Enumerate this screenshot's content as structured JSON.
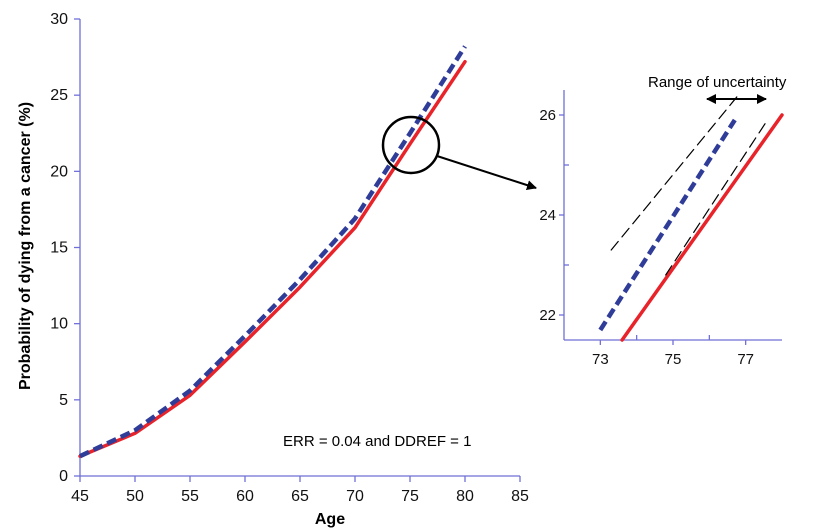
{
  "chart_data": [
    {
      "type": "line",
      "title": "",
      "xlabel": "Age",
      "ylabel": "Probability of dying from a cancer (%)",
      "xlim": [
        45,
        85
      ],
      "ylim": [
        0,
        30
      ],
      "x_ticks": [
        45,
        50,
        55,
        60,
        65,
        70,
        75,
        80,
        85
      ],
      "y_ticks": [
        0,
        5,
        10,
        15,
        20,
        25,
        30
      ],
      "grid": false,
      "annotation": "ERR = 0.04 and DDREF = 1",
      "colors": {
        "baseline": "#e8232a",
        "exposed": "#2f3d99",
        "axis": "#6f6fd8"
      },
      "series": [
        {
          "style": "solid",
          "color": "#e8232a",
          "x": [
            45,
            50,
            55,
            60,
            65,
            70,
            75,
            80
          ],
          "y": [
            1.3,
            2.8,
            5.3,
            8.8,
            12.4,
            16.3,
            21.8,
            27.2
          ]
        },
        {
          "style": "dashed",
          "color": "#2f3d99",
          "x": [
            45,
            50,
            55,
            60,
            65,
            70,
            75,
            80
          ],
          "y": [
            1.3,
            3.0,
            5.6,
            9.2,
            12.9,
            16.9,
            22.5,
            28.2
          ]
        }
      ]
    },
    {
      "type": "line",
      "title": "",
      "xlim": [
        72,
        78
      ],
      "ylim": [
        21.5,
        26.5
      ],
      "x_ticks": [
        73,
        75,
        77
      ],
      "y_ticks": [
        22,
        24,
        26
      ],
      "annotation": "Range of uncertainty",
      "series": [
        {
          "style": "solid",
          "color": "#e8232a",
          "x": [
            73.6,
            78
          ],
          "y": [
            21.5,
            26.0
          ]
        },
        {
          "style": "dashed",
          "color": "#2f3d99",
          "x": [
            73,
            76.7
          ],
          "y": [
            21.7,
            25.9
          ]
        },
        {
          "style": "thin-dashed",
          "color": "#000000",
          "x": [
            73.3,
            76.8
          ],
          "y": [
            23.3,
            26.4
          ]
        },
        {
          "style": "thin-dashed",
          "color": "#000000",
          "x": [
            74.8,
            77.6
          ],
          "y": [
            22.8,
            25.9
          ]
        }
      ]
    }
  ]
}
